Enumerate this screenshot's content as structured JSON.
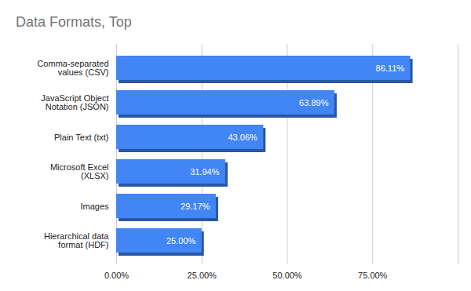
{
  "chart_data": {
    "type": "bar",
    "title": "Data Formats, Top",
    "orientation": "horizontal",
    "categories": [
      "Comma-separated values (CSV)",
      "JavaScript Object Notation (JSON)",
      "Plain Text (txt)",
      "Microsoft Excel (XLSX)",
      "Images",
      "Hierarchical data format (HDF)"
    ],
    "values": [
      86.11,
      63.89,
      43.06,
      31.94,
      29.17,
      25.0
    ],
    "value_labels": [
      "86.11%",
      "63.89%",
      "43.06%",
      "31.94%",
      "29.17%",
      "25.00%"
    ],
    "data_labels": true,
    "color": "#4285f4",
    "xlim": [
      0,
      100
    ],
    "xticks": [
      {
        "value": 0,
        "label": "0.00%"
      },
      {
        "value": 25,
        "label": "25.00%"
      },
      {
        "value": 50,
        "label": "50.00%"
      },
      {
        "value": 75,
        "label": "75.00%"
      }
    ],
    "grid": true
  }
}
